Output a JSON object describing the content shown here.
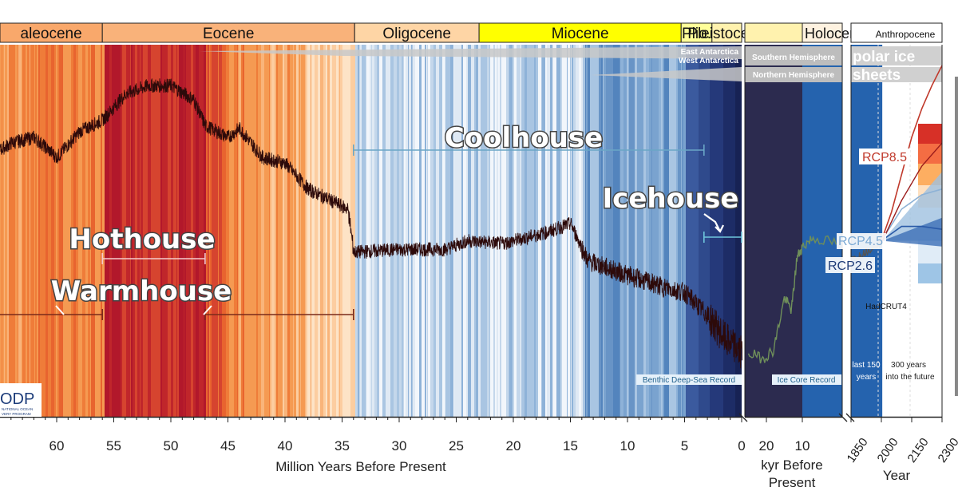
{
  "chart_data": {
    "type": "line",
    "title": "",
    "x_axis": {
      "label": "Million Years Before Present",
      "range_myr": [
        65,
        0
      ],
      "ticks": [
        "60",
        "55",
        "50",
        "45",
        "40",
        "35",
        "30",
        "25",
        "20",
        "15",
        "10",
        "5",
        "0"
      ]
    },
    "kyr_axis": {
      "label_line1": "kyr Before",
      "label_line2": "Present",
      "ticks": [
        "20",
        "10"
      ]
    },
    "year_axis": {
      "label": "Year",
      "ticks": [
        "1850",
        "2000",
        "2150",
        "2300"
      ]
    },
    "epochs": [
      {
        "name": "Paleocene",
        "display": "aleocene",
        "start": 66,
        "end": 56,
        "color": "#f9a86b"
      },
      {
        "name": "Eocene",
        "display": "Eocene",
        "start": 56,
        "end": 33.9,
        "color": "#f9b27a"
      },
      {
        "name": "Oligocene",
        "display": "Oligocene",
        "start": 33.9,
        "end": 23,
        "color": "#fed5a5"
      },
      {
        "name": "Miocene",
        "display": "Miocene",
        "start": 23,
        "end": 5.3,
        "color": "#ffff00"
      },
      {
        "name": "Pliocene",
        "display": "Plio.",
        "start": 5.3,
        "end": 2.6,
        "color": "#ffff99"
      },
      {
        "name": "Pleistocene",
        "display": "Pleistocene",
        "start": 2.6,
        "end": 0,
        "color": "#fff2ae"
      }
    ],
    "epochs_right": [
      {
        "name": "Holocene",
        "display": "Holocene",
        "color": "#fef2e0"
      },
      {
        "name": "Anthropocene",
        "display": "Anthropocene",
        "color": "#ffffff"
      }
    ],
    "climate_states": [
      {
        "name": "Hothouse",
        "start": 56,
        "end": 47
      },
      {
        "name": "Warmhouse",
        "start": 66,
        "end": 56
      },
      {
        "name": "Warmhouse",
        "start": 47,
        "end": 34
      },
      {
        "name": "Coolhouse",
        "start": 34,
        "end": 3.3
      },
      {
        "name": "Icehouse",
        "start": 3.3,
        "end": 0
      }
    ],
    "benthic_record_anchors": [
      {
        "myr": 66,
        "level": 0.73
      },
      {
        "myr": 64,
        "level": 0.78
      },
      {
        "myr": 62,
        "level": 0.8
      },
      {
        "myr": 60,
        "level": 0.73
      },
      {
        "myr": 58,
        "level": 0.82
      },
      {
        "myr": 56,
        "level": 0.86
      },
      {
        "myr": 54,
        "level": 0.95
      },
      {
        "myr": 52,
        "level": 0.98
      },
      {
        "myr": 50,
        "level": 0.98
      },
      {
        "myr": 48,
        "level": 0.93
      },
      {
        "myr": 47,
        "level": 0.84
      },
      {
        "myr": 45,
        "level": 0.8
      },
      {
        "myr": 44,
        "level": 0.83
      },
      {
        "myr": 42,
        "level": 0.73
      },
      {
        "myr": 40,
        "level": 0.71
      },
      {
        "myr": 38,
        "level": 0.62
      },
      {
        "myr": 36,
        "level": 0.58
      },
      {
        "myr": 34.5,
        "level": 0.55
      },
      {
        "myr": 34,
        "level": 0.4
      },
      {
        "myr": 30,
        "level": 0.41
      },
      {
        "myr": 26,
        "level": 0.41
      },
      {
        "myr": 24,
        "level": 0.44
      },
      {
        "myr": 21,
        "level": 0.43
      },
      {
        "myr": 17,
        "level": 0.47
      },
      {
        "myr": 15,
        "level": 0.5
      },
      {
        "myr": 13.5,
        "level": 0.37
      },
      {
        "myr": 10,
        "level": 0.32
      },
      {
        "myr": 7,
        "level": 0.28
      },
      {
        "myr": 5,
        "level": 0.26
      },
      {
        "myr": 3,
        "level": 0.18
      },
      {
        "myr": 1.5,
        "level": 0.1
      },
      {
        "myr": 0,
        "level": 0.05
      }
    ],
    "ice_core_anchors": [
      {
        "kyr": 25,
        "level": 0.05
      },
      {
        "kyr": 21,
        "level": 0.03
      },
      {
        "kyr": 18,
        "level": 0.06
      },
      {
        "kyr": 15,
        "level": 0.24
      },
      {
        "kyr": 13,
        "level": 0.2
      },
      {
        "kyr": 11.5,
        "level": 0.38
      },
      {
        "kyr": 10,
        "level": 0.42
      },
      {
        "kyr": 7,
        "level": 0.45
      },
      {
        "kyr": 0,
        "level": 0.43
      }
    ],
    "projections": [
      {
        "name": "RCP8.5",
        "color": "#c0392b",
        "years": [
          2000,
          2050,
          2100,
          2150,
          2200,
          2250,
          2300
        ],
        "level": [
          0.44,
          0.54,
          0.67,
          0.8,
          0.9,
          0.98,
          1.05
        ]
      },
      {
        "name": "RCP4.5",
        "color": "#8db2d6",
        "years": [
          2000,
          2100,
          2200,
          2300
        ],
        "level": [
          0.44,
          0.55,
          0.6,
          0.62
        ]
      },
      {
        "name": "RCP2.6",
        "color": "#2a5aa8",
        "years": [
          2000,
          2100,
          2200,
          2300
        ],
        "level": [
          0.44,
          0.49,
          0.49,
          0.48
        ]
      }
    ],
    "hadcrut4_label": "HadCRUT4",
    "annotations": {
      "benthic": "Benthic Deep-Sea Record",
      "ice_core": "Ice Core Record",
      "last150_line1": "last 150",
      "last150_line2": "years",
      "future_line1": "300 years",
      "future_line2": "into the future"
    },
    "ice_sheets": {
      "east": "East Antarctica",
      "west": "West Antarctica",
      "southern": "Southern Hemisphere",
      "northern": "Northern Hemisphere",
      "label_line1": "polar ice",
      "label_line2": "sheets"
    },
    "logo": {
      "text": "ODP",
      "sub1": "NATIONAL OCEAN",
      "sub2": "VERY PROGRAM"
    },
    "colors": {
      "record_line": "#2d0a0a",
      "ice_core_line": "#6f8f5a",
      "coolhouse_bar": "#6aa6c6",
      "warm_bar": "#8a2a1a"
    }
  }
}
